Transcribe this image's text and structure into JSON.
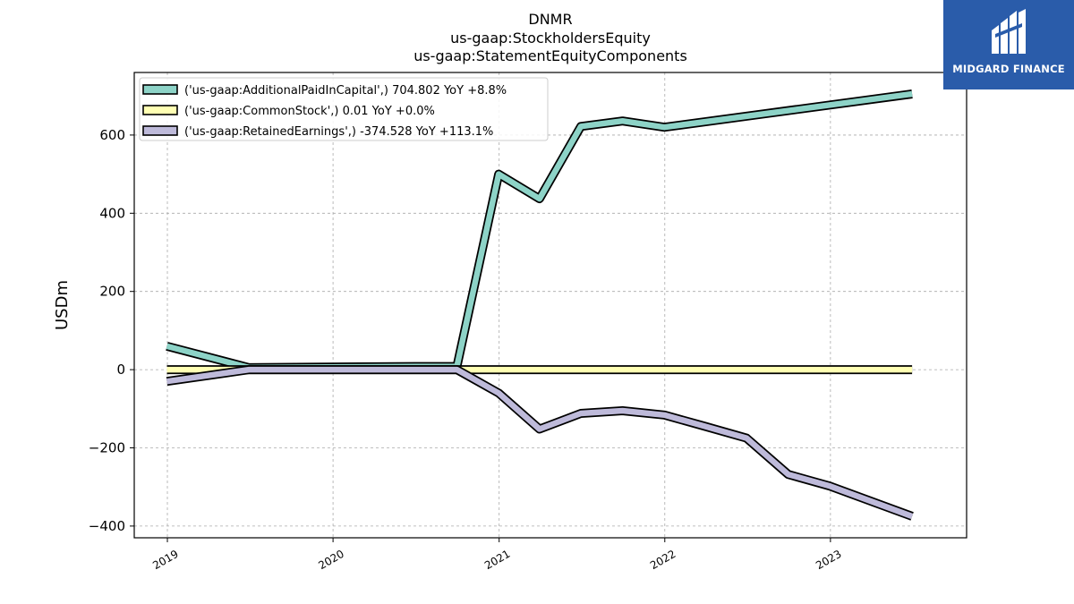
{
  "logo": {
    "text": "MIDGARD FINANCE",
    "background": "#2a5caa"
  },
  "chart_data": {
    "type": "line",
    "title": [
      "DNMR",
      "us-gaap:StockholdersEquity",
      "us-gaap:StatementEquityComponents"
    ],
    "xlabel": "",
    "ylabel": "USDm",
    "xlim": [
      "2018-10-20",
      "2023-10-28"
    ],
    "ylim": [
      -430,
      760
    ],
    "y_ticks": [
      -400,
      -200,
      0,
      200,
      400,
      600
    ],
    "y_tick_labels": [
      "−400",
      "−200",
      "0",
      "200",
      "400",
      "600"
    ],
    "x_ticks": [
      "2019-01-01",
      "2020-01-01",
      "2021-01-01",
      "2022-01-01",
      "2023-01-01"
    ],
    "x_tick_labels": [
      "2019",
      "2020",
      "2021",
      "2022",
      "2023"
    ],
    "grid": true,
    "legend_position": "top-left",
    "series": [
      {
        "name": "('us-gaap:AdditionalPaidInCapital',) 704.802 YoY +8.8%",
        "color": "#8dd3c7",
        "points": [
          [
            "2018-12-31",
            60
          ],
          [
            "2019-06-30",
            5
          ],
          [
            "2020-06-30",
            8
          ],
          [
            "2020-09-30",
            8
          ],
          [
            "2020-12-31",
            500
          ],
          [
            "2021-03-31",
            437
          ],
          [
            "2021-06-30",
            622
          ],
          [
            "2021-09-30",
            636
          ],
          [
            "2021-12-31",
            620
          ],
          [
            "2023-06-30",
            705
          ]
        ]
      },
      {
        "name": "('us-gaap:CommonStock',) 0.01 YoY +0.0%",
        "color": "#ffffb3",
        "points": [
          [
            "2018-12-31",
            0.01
          ],
          [
            "2023-06-30",
            0.01
          ]
        ]
      },
      {
        "name": "('us-gaap:RetainedEarnings',) -374.528 YoY +113.1%",
        "color": "#bebada",
        "points": [
          [
            "2018-12-31",
            -30
          ],
          [
            "2019-06-30",
            0
          ],
          [
            "2020-09-30",
            0
          ],
          [
            "2020-12-31",
            -60
          ],
          [
            "2021-03-31",
            -152
          ],
          [
            "2021-06-30",
            -112
          ],
          [
            "2021-09-30",
            -105
          ],
          [
            "2021-12-31",
            -116
          ],
          [
            "2022-03-31",
            -145
          ],
          [
            "2022-06-30",
            -175
          ],
          [
            "2022-09-30",
            -268
          ],
          [
            "2022-12-31",
            -298
          ],
          [
            "2023-06-30",
            -375
          ]
        ]
      }
    ]
  }
}
